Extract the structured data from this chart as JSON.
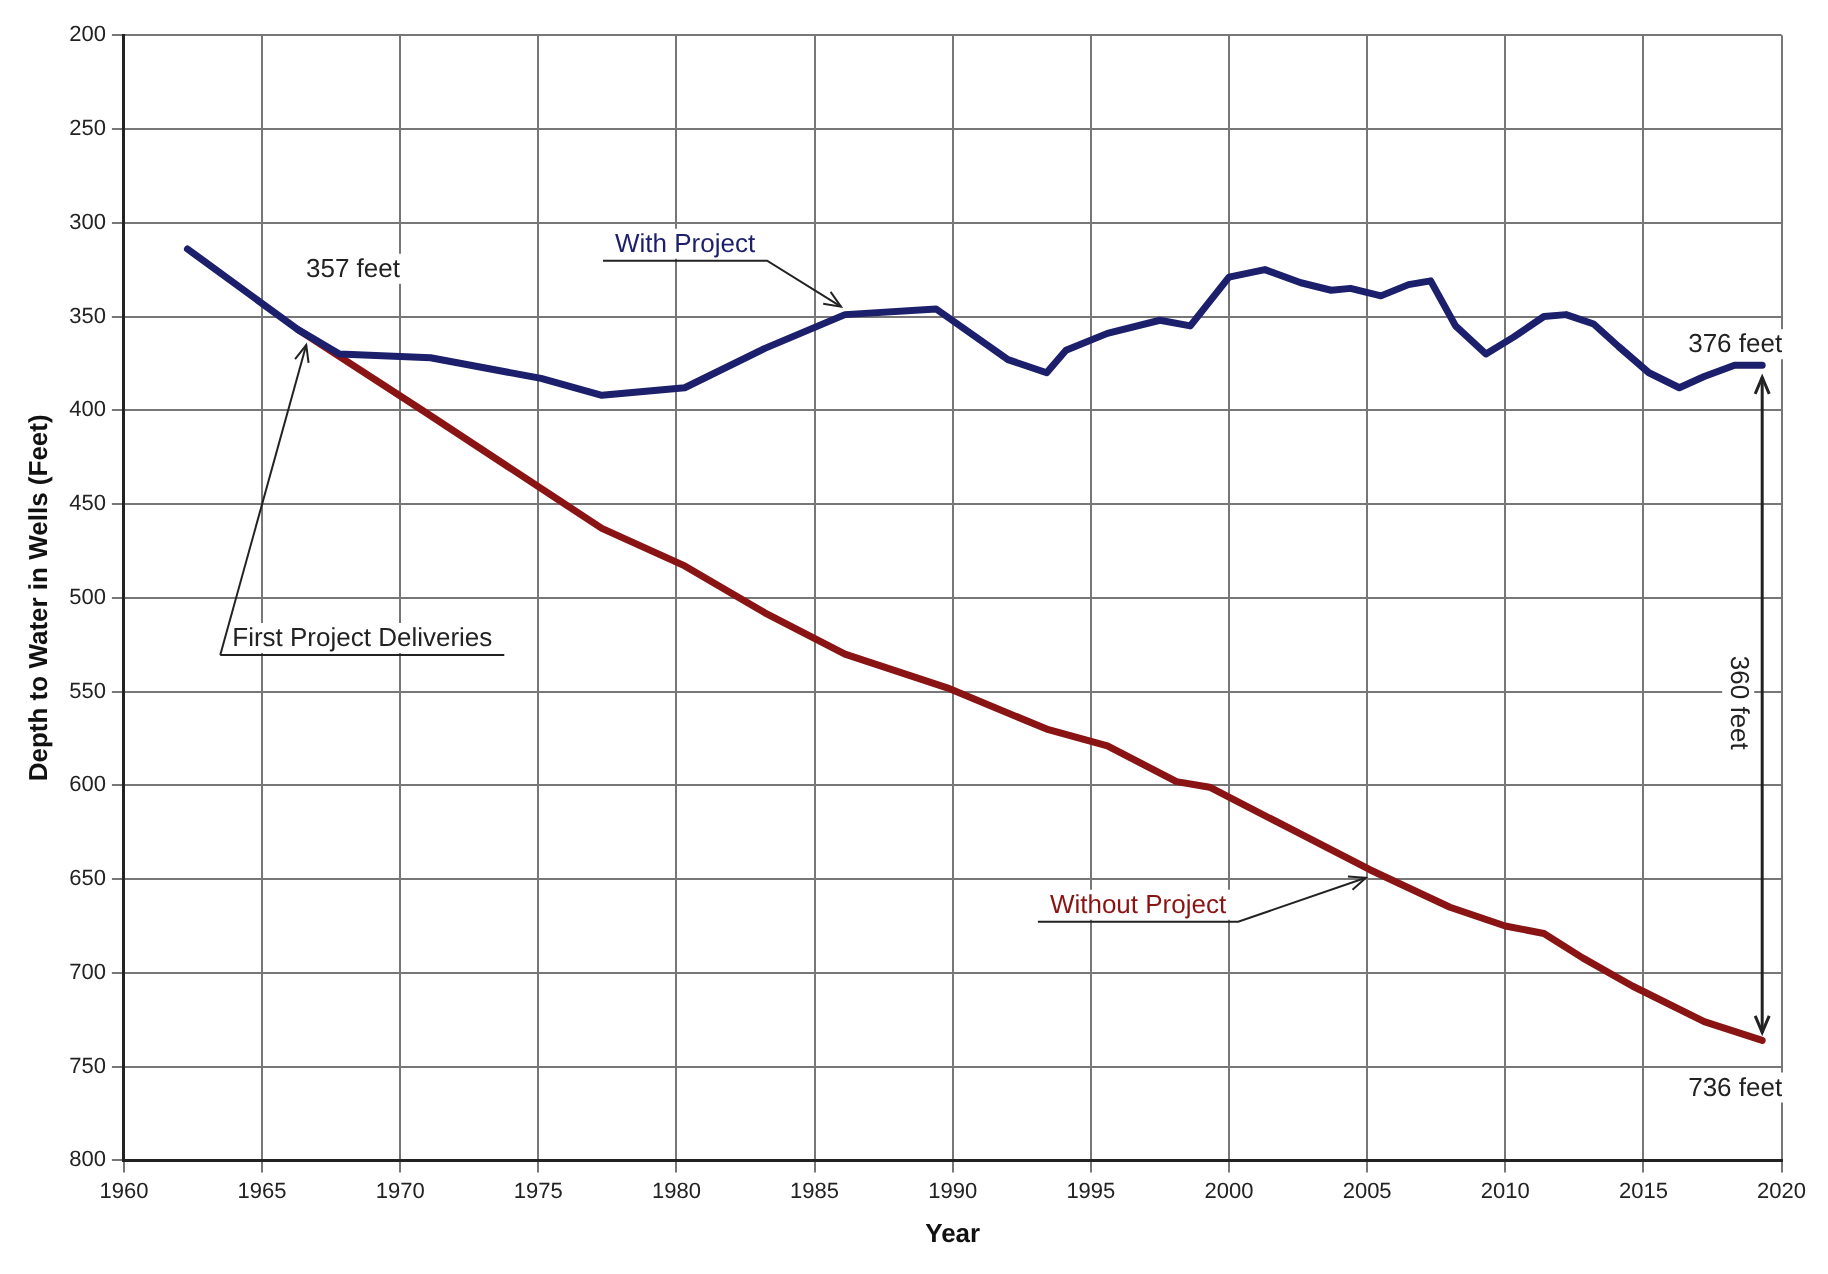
{
  "chart_data": {
    "type": "line",
    "xlabel": "Year",
    "ylabel": "Depth to Water in Wells (Feet)",
    "xlim": [
      1960,
      2020
    ],
    "xticks": [
      1960,
      1965,
      1970,
      1975,
      1980,
      1985,
      1990,
      1995,
      2000,
      2005,
      2010,
      2015,
      2020
    ],
    "ylim": [
      800,
      200
    ],
    "yticks": [
      200,
      250,
      300,
      350,
      400,
      450,
      500,
      550,
      600,
      650,
      700,
      750,
      800
    ],
    "grid": true,
    "legend": false,
    "marker": "none",
    "line_style": "solid",
    "series": [
      {
        "name": "With Project",
        "color": "#1c1f6b",
        "x": [
          1962.3,
          1966.3,
          1967.8,
          1971.1,
          1975.1,
          1977.3,
          1980.3,
          1983.2,
          1986.1,
          1989.4,
          1992,
          1993.4,
          1994.1,
          1995.6,
          1997.5,
          1998.6,
          2000,
          2001.3,
          2002.6,
          2003.7,
          2004.4,
          2005.5,
          2006.5,
          2007.3,
          2008.2,
          2009.3,
          2010.3,
          2011.4,
          2012.2,
          2013.2,
          2014.1,
          2015.2,
          2016.3,
          2017.2,
          2018.3,
          2019.3
        ],
        "values": [
          314,
          357,
          370,
          372,
          383,
          392,
          388,
          367,
          349,
          346,
          373,
          380,
          368,
          359,
          352,
          355,
          329,
          325,
          332,
          336,
          335,
          339,
          333,
          331,
          355,
          370,
          361,
          350,
          349,
          354,
          366,
          380,
          388,
          382,
          376,
          376
        ]
      },
      {
        "name": "Without Project",
        "color": "#8a1414",
        "x": [
          1966.3,
          1970.8,
          1977.3,
          1980.3,
          1983.2,
          1986.1,
          1989.8,
          1993.4,
          1995.6,
          1998.1,
          1999.3,
          2002.2,
          2005.1,
          2008,
          2010,
          2011.4,
          2012.8,
          2014.6,
          2017.2,
          2019.3
        ],
        "values": [
          357,
          400,
          463,
          483,
          508,
          530,
          548,
          570,
          579,
          598,
          601,
          623,
          645,
          665,
          675,
          679,
          692,
          707,
          726,
          736
        ]
      }
    ],
    "annotations": [
      {
        "text": "357 feet",
        "x": 1966.3,
        "y": 357
      },
      {
        "text": "First Project Deliveries",
        "x": 1966.6,
        "y": 362
      },
      {
        "text": "376 feet",
        "x": 2019.3,
        "y": 376
      },
      {
        "text": "736 feet",
        "x": 2019.3,
        "y": 736
      },
      "360 feet"
    ]
  }
}
